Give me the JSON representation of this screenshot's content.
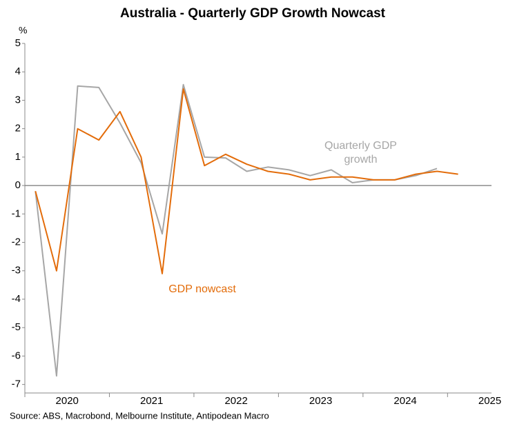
{
  "chart_data": {
    "type": "line",
    "title": "Australia - Quarterly GDP Growth Nowcast",
    "y_unit": "%",
    "source": "Source: ABS, Macrobond, Melbourne Institute, Antipodean Macro",
    "x": [
      2020.125,
      2020.375,
      2020.625,
      2020.875,
      2021.125,
      2021.375,
      2021.625,
      2021.875,
      2022.125,
      2022.375,
      2022.625,
      2022.875,
      2023.125,
      2023.375,
      2023.625,
      2023.875,
      2024.125,
      2024.375,
      2024.625,
      2024.875,
      2025.125
    ],
    "series": [
      {
        "name": "Quarterly GDP growth",
        "color": "#a6a6a6",
        "values": [
          -0.2,
          -6.7,
          3.5,
          3.45,
          2.2,
          0.8,
          -1.7,
          3.55,
          1.0,
          0.97,
          0.5,
          0.65,
          0.55,
          0.35,
          0.55,
          0.1,
          0.2,
          0.2,
          0.35,
          0.6,
          null
        ]
      },
      {
        "name": "GDP nowcast",
        "color": "#e36c0a",
        "values": [
          -0.2,
          -3.0,
          2.0,
          1.6,
          2.6,
          1.0,
          -3.1,
          3.4,
          0.7,
          1.1,
          0.75,
          0.5,
          0.4,
          0.2,
          0.3,
          0.3,
          0.2,
          0.2,
          0.4,
          0.5,
          0.4
        ]
      }
    ],
    "xlim": [
      2020,
      2025.52
    ],
    "xticks": [
      2020,
      2021,
      2022,
      2023,
      2024,
      2025
    ],
    "ylim": [
      -7.3,
      5
    ],
    "yticks": [
      -7,
      -6,
      -5,
      -4,
      -3,
      -2,
      -1,
      0,
      1,
      2,
      3,
      4,
      5
    ],
    "zero_line": true,
    "grid": false
  }
}
